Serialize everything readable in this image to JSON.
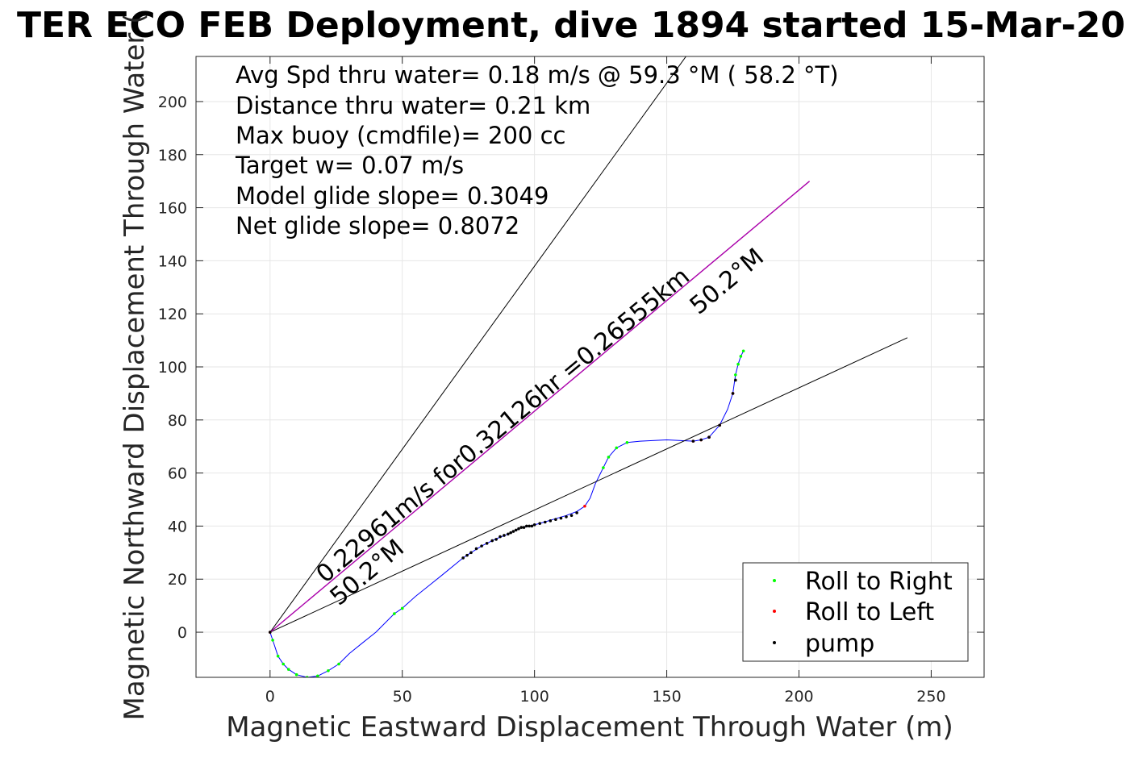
{
  "chart_data": {
    "type": "line",
    "title": "TER ECO FEB Deployment, dive 1894 started 15-Mar-20",
    "xlabel": "Magnetic Eastward Displacement Through Water (m)",
    "ylabel": "Magnetic Northward Displacement Through Water (",
    "xlim": [
      -28,
      270
    ],
    "ylim": [
      -17,
      217
    ],
    "xticks": [
      "0",
      "50",
      "100",
      "150",
      "200",
      "250"
    ],
    "yticks": [
      "0",
      "20",
      "40",
      "60",
      "80",
      "100",
      "120",
      "140",
      "160",
      "180",
      "200"
    ],
    "xtick_values": [
      0,
      50,
      100,
      150,
      200,
      250
    ],
    "ytick_values": [
      0,
      20,
      40,
      60,
      80,
      100,
      120,
      140,
      160,
      180,
      200
    ],
    "grid": true,
    "annotations": [
      "Avg Spd thru water=  0.18 m/s @  59.3 °M ( 58.2 °T)",
      "Distance thru water=  0.21 km",
      "Max buoy (cmdfile)= 200 cc",
      "Target w= 0.07 m/s",
      "Model glide slope= 0.3049",
      "Net glide slope= 0.8072"
    ],
    "current_label": "0.22961m/s for0.32126hr =0.26555km",
    "heading_label_1": "50.2°M",
    "heading_label_2": "50.2°M",
    "legend_position": "bottom-right",
    "legend": [
      {
        "label": "Roll to Right",
        "color": "#00ff00"
      },
      {
        "label": "Roll to Left",
        "color": "#ff0000"
      },
      {
        "label": "pump",
        "color": "#000000"
      }
    ],
    "series": [
      {
        "role": "glider-track",
        "color": "#0000ff",
        "x": [
          0,
          1,
          2,
          3,
          5,
          7,
          10,
          14,
          18,
          22,
          26,
          30,
          35,
          40,
          47,
          50,
          55,
          60,
          65,
          73,
          76,
          80,
          85,
          90,
          93,
          95,
          98,
          102,
          107,
          112,
          116,
          119,
          121,
          123,
          126,
          128,
          131,
          135,
          140,
          150,
          160,
          163,
          166,
          170,
          173,
          175,
          176,
          177,
          178,
          179
        ],
        "y": [
          0,
          -3,
          -6,
          -9,
          -12,
          -14,
          -16,
          -17,
          -16.5,
          -14.5,
          -12,
          -8,
          -4,
          0,
          7,
          9,
          13.5,
          17.5,
          21.5,
          28,
          30,
          32.5,
          35,
          37,
          38.5,
          39.5,
          40,
          41,
          42.5,
          44,
          45.5,
          47.5,
          50.5,
          56,
          62,
          66,
          69.5,
          71.5,
          72,
          72.5,
          72,
          72.5,
          73.5,
          78,
          84,
          90,
          97,
          101,
          104,
          106
        ]
      },
      {
        "role": "model-heading-line",
        "color": "#000000",
        "x": [
          0,
          158
        ],
        "y": [
          0,
          218
        ]
      },
      {
        "role": "net-displacement-line",
        "color": "#000000",
        "x": [
          0,
          241
        ],
        "y": [
          0,
          111
        ]
      },
      {
        "role": "current-line",
        "color": "#aa00aa",
        "x": [
          0,
          204
        ],
        "y": [
          0,
          170
        ]
      }
    ],
    "markers": {
      "roll_right": {
        "color": "#00ff00",
        "x": [
          1,
          3,
          5,
          7,
          10,
          14,
          18,
          22,
          26,
          47,
          50,
          126,
          128,
          131,
          135,
          176,
          177,
          178,
          179
        ],
        "y": [
          -3,
          -9,
          -12,
          -14,
          -16,
          -17,
          -16.5,
          -14.5,
          -12,
          7,
          9,
          62,
          66,
          69.5,
          71.5,
          97,
          101,
          104,
          106
        ]
      },
      "roll_left": {
        "color": "#ff0000",
        "x": [
          0,
          119,
          160,
          163,
          166,
          170,
          175
        ],
        "y": [
          0,
          47.5,
          72,
          72.5,
          73.5,
          78,
          90
        ]
      },
      "pump": {
        "color": "#000000",
        "x": [
          0,
          73,
          74.5,
          76,
          78,
          80,
          82,
          84,
          85.5,
          87,
          88.5,
          90,
          91,
          92,
          93,
          94,
          95,
          96,
          97,
          98,
          99,
          100,
          102,
          104,
          106,
          108,
          110,
          112,
          114,
          116,
          160,
          163,
          166,
          170,
          175,
          176
        ],
        "y": [
          0,
          28,
          29,
          30,
          31.5,
          32.5,
          33.5,
          34.5,
          35,
          36,
          36.5,
          37,
          37.5,
          38,
          38.5,
          39,
          39.5,
          39.5,
          40,
          40,
          40,
          40.5,
          41,
          41.5,
          42,
          42.5,
          43,
          43.5,
          44,
          45,
          72,
          72.5,
          73.5,
          78,
          90,
          95
        ]
      }
    }
  }
}
